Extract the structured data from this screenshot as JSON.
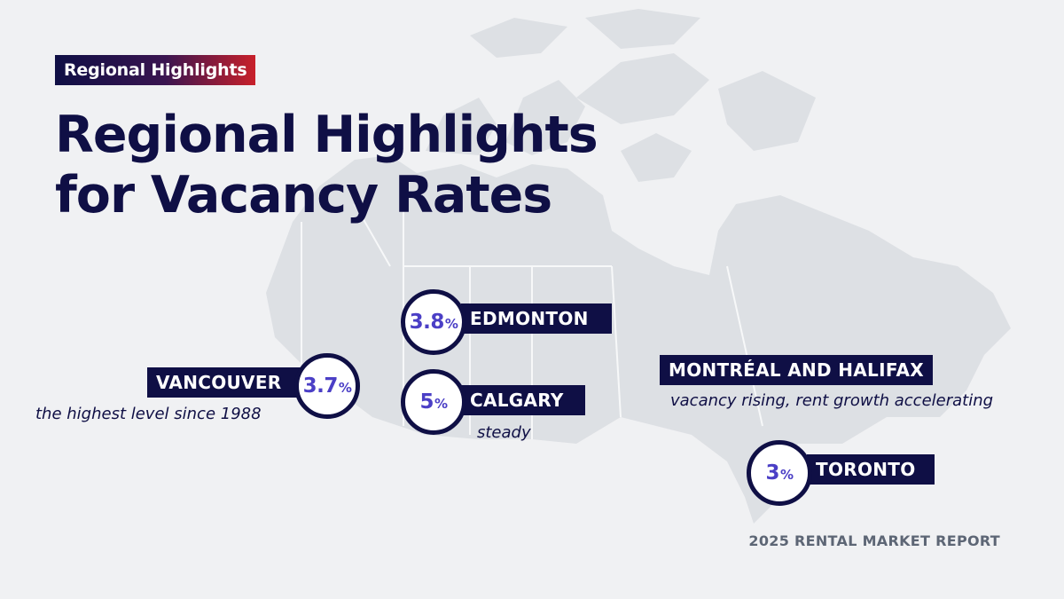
{
  "tag": "Regional Highlights",
  "title": {
    "line1": "Regional Highlights",
    "line2": "for Vacancy Rates"
  },
  "colors": {
    "navy": "#0f0f45",
    "accent_purple": "#4b3fc6",
    "accent_red": "#c8202a",
    "map_fill": "#dcdfe3",
    "background": "#f0f1f3"
  },
  "cities": {
    "vancouver": {
      "name": "VANCOUVER",
      "rate": "3.7",
      "unit": "%",
      "note": "the highest level since 1988"
    },
    "edmonton": {
      "name": "EDMONTON",
      "rate": "3.8",
      "unit": "%"
    },
    "calgary": {
      "name": "CALGARY",
      "rate": "5",
      "unit": "%",
      "note": "steady"
    },
    "montreal_halifax": {
      "name": "MONTRÉAL AND HALIFAX",
      "note": "vacancy rising, rent growth accelerating"
    },
    "toronto": {
      "name": "TORONTO",
      "rate": "3",
      "unit": "%"
    }
  },
  "footer": "2025 RENTAL MARKET REPORT"
}
